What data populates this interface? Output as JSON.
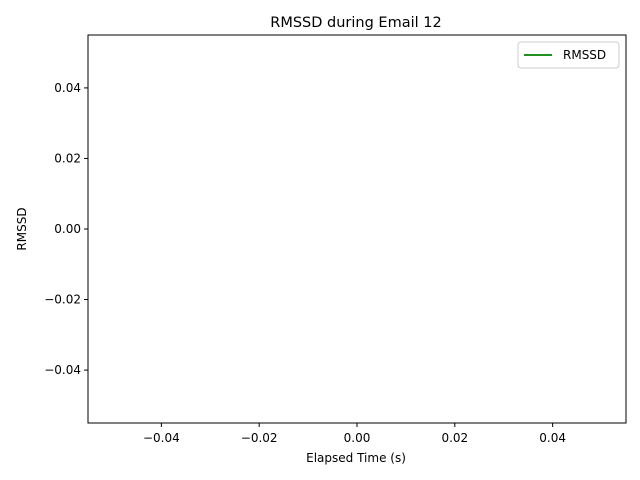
{
  "chart_data": {
    "type": "line",
    "title": "RMSSD during Email 12",
    "xlabel": "Elapsed Time (s)",
    "ylabel": "RMSSD",
    "xlim": [
      -0.055,
      0.055
    ],
    "ylim": [
      -0.055,
      0.055
    ],
    "xticks": [
      -0.04,
      -0.02,
      0.0,
      0.02,
      0.04
    ],
    "xtick_labels": [
      "−0.04",
      "−0.02",
      "0.00",
      "0.02",
      "0.04"
    ],
    "yticks": [
      -0.04,
      -0.02,
      0.0,
      0.02,
      0.04
    ],
    "ytick_labels": [
      "−0.04",
      "−0.02",
      "0.00",
      "0.02",
      "0.04"
    ],
    "grid": false,
    "legend_position": "upper right",
    "series": [
      {
        "name": "RMSSD",
        "color": "#008000",
        "x": [],
        "y": []
      }
    ]
  }
}
